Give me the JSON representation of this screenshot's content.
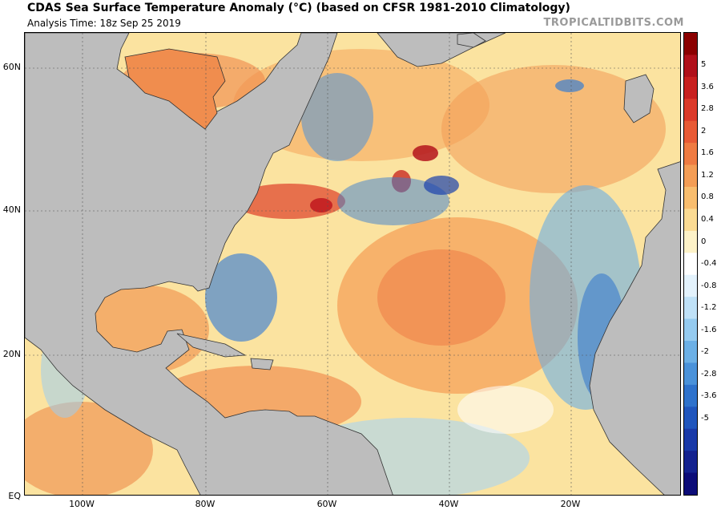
{
  "header": {
    "title": "CDAS Sea Surface Temperature Anomaly (°C) (based on CFSR 1981-2010 Climatology)",
    "subtitle": "Analysis Time: 18z Sep 25 2019",
    "brand": "TROPICALTIDBITS.COM"
  },
  "map": {
    "lat_labels": [
      "60N",
      "40N",
      "20N",
      "EQ"
    ],
    "lon_labels": [
      "100W",
      "80W",
      "60W",
      "40W",
      "20W"
    ],
    "land_color": "#bdbdbd",
    "ocean_base_color": "#fbe3a0"
  },
  "colorbar": {
    "labels": [
      "5",
      "3.6",
      "2.8",
      "2",
      "1.6",
      "1.2",
      "0.8",
      "0.4",
      "0",
      "-0.4",
      "-0.8",
      "-1.2",
      "-1.6",
      "-2",
      "-2.8",
      "-3.6",
      "-5"
    ],
    "colors": [
      "#8b0000",
      "#b0101a",
      "#c8201f",
      "#dc3a2a",
      "#e85a35",
      "#ef7b42",
      "#f49d55",
      "#f8bd6e",
      "#fbdb93",
      "#fdf2c8",
      "#ffffff",
      "#e3f2fc",
      "#bfe1f7",
      "#95cbf0",
      "#6cb0e6",
      "#4a92da",
      "#2e72cc",
      "#1f55bd",
      "#1939a8",
      "#14228f",
      "#0c0c78"
    ]
  }
}
